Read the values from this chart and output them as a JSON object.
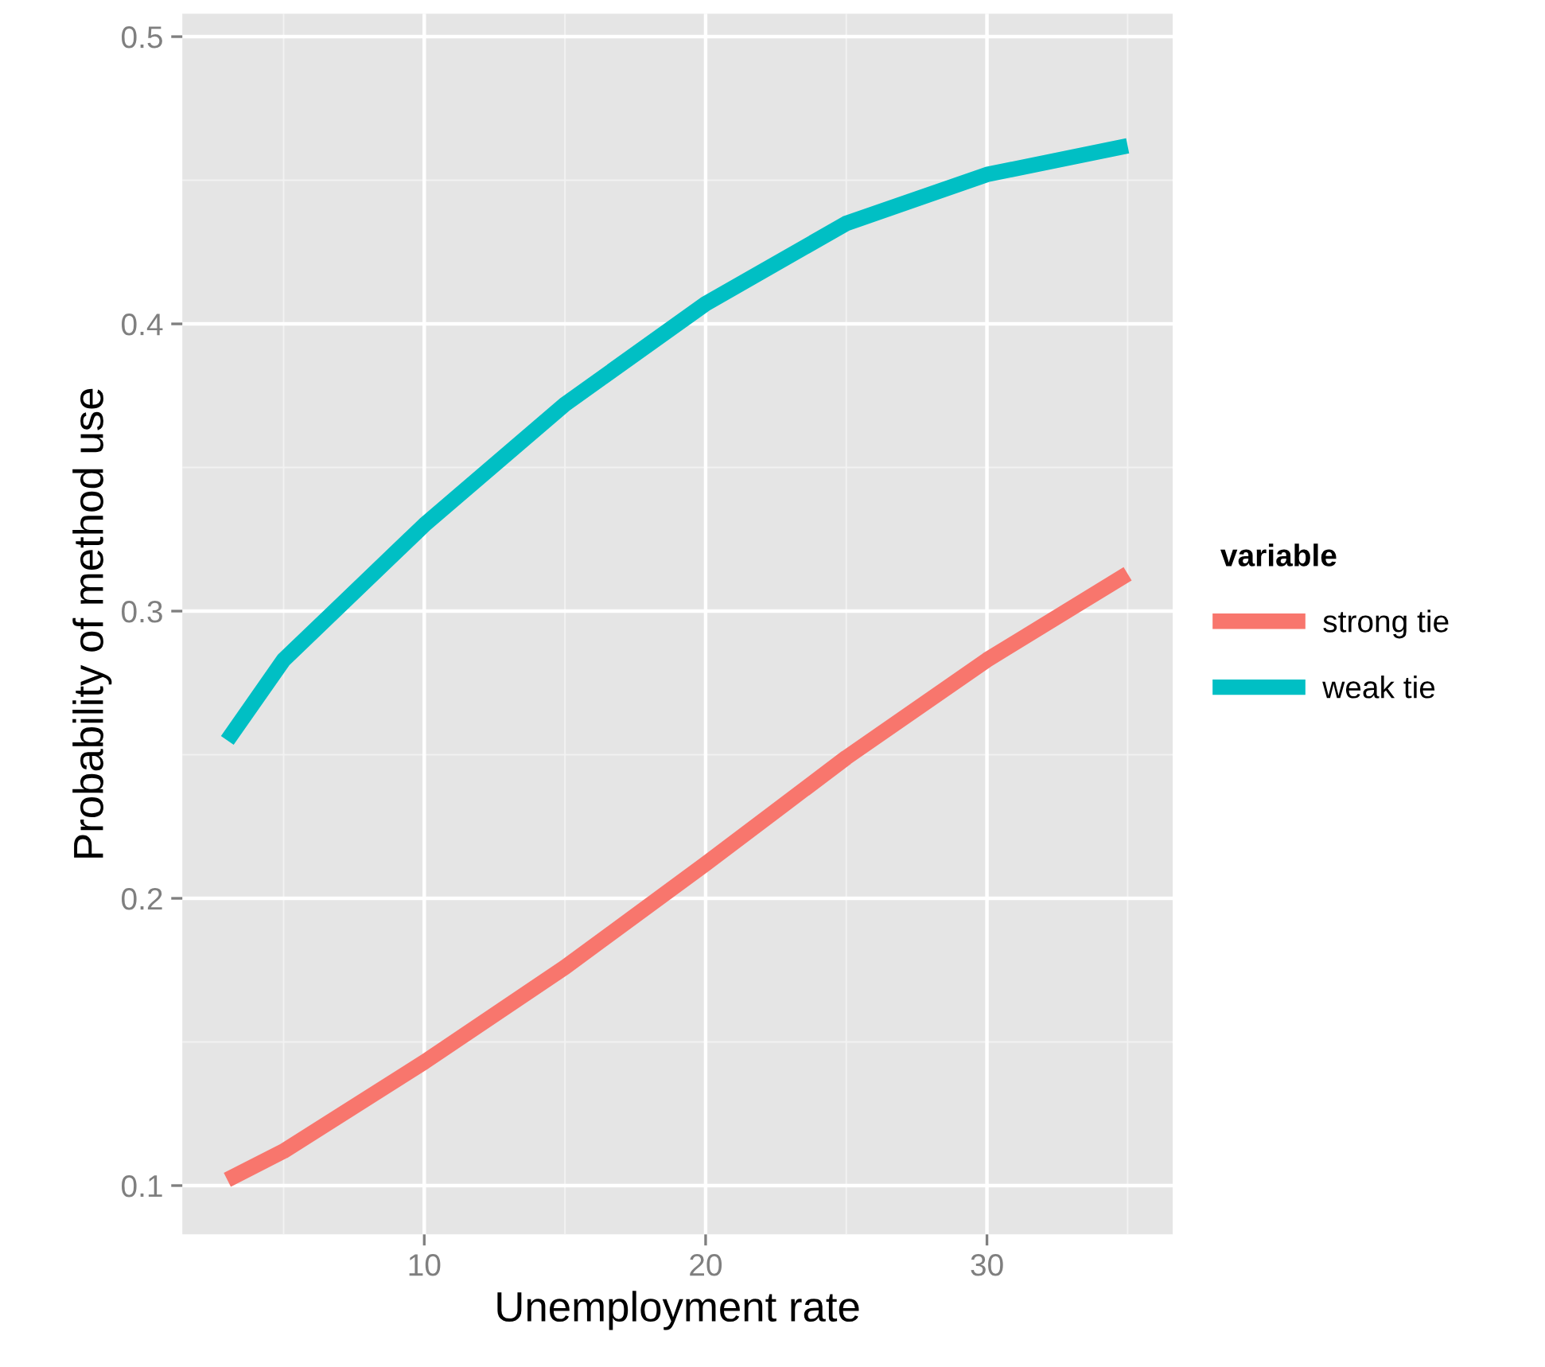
{
  "chart_data": {
    "type": "line",
    "xlabel": "Unemployment rate",
    "ylabel": "Probability of method use",
    "legend_title": "variable",
    "x": [
      3,
      5,
      10,
      15,
      20,
      25,
      30,
      35
    ],
    "series": [
      {
        "name": "strong tie",
        "color": "#f8766d",
        "values": [
          0.102,
          0.112,
          0.143,
          0.176,
          0.212,
          0.249,
          0.283,
          0.313
        ]
      },
      {
        "name": "weak tie",
        "color": "#00bfc4",
        "values": [
          0.255,
          0.283,
          0.33,
          0.372,
          0.407,
          0.435,
          0.452,
          0.462
        ]
      }
    ],
    "xlim": [
      1.4,
      36.6
    ],
    "xticks": [
      10,
      20,
      30
    ],
    "ylim": [
      0.083,
      0.508
    ],
    "yticks": [
      0.1,
      0.2,
      0.3,
      0.4,
      0.5
    ],
    "grid": true,
    "legend": "right",
    "marker": "none",
    "line_style": "solid"
  }
}
